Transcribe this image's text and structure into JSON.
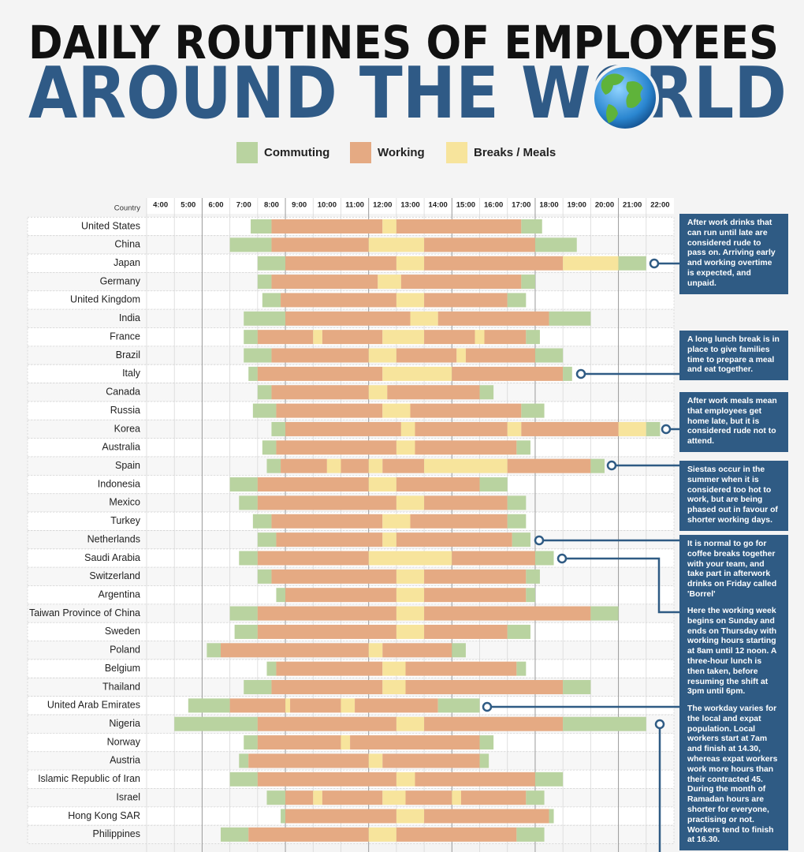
{
  "chart_data": {
    "type": "gantt",
    "title": "DAILY ROUTINES OF EMPLOYEES",
    "subtitle": "AROUND THE WORLD",
    "legend": [
      {
        "name": "Commuting",
        "color": "#b9d3a0"
      },
      {
        "name": "Working",
        "color": "#e5aa83"
      },
      {
        "name": "Breaks / Meals",
        "color": "#f7e49c"
      }
    ],
    "row_header": "Country",
    "xlim": [
      4,
      23
    ],
    "xticks": [
      {
        "value": 4,
        "label": "4:00"
      },
      {
        "value": 5,
        "label": "5:00"
      },
      {
        "value": 6,
        "label": "6:00"
      },
      {
        "value": 7,
        "label": "7:00"
      },
      {
        "value": 8,
        "label": "8:00"
      },
      {
        "value": 9,
        "label": "9:00"
      },
      {
        "value": 10,
        "label": "10:00"
      },
      {
        "value": 11,
        "label": "11:00"
      },
      {
        "value": 12,
        "label": "12:00"
      },
      {
        "value": 13,
        "label": "13:00"
      },
      {
        "value": 14,
        "label": "14:00"
      },
      {
        "value": 15,
        "label": "15:00"
      },
      {
        "value": 16,
        "label": "16:00"
      },
      {
        "value": 17,
        "label": "17:00"
      },
      {
        "value": 18,
        "label": "18:00"
      },
      {
        "value": 19,
        "label": "19:00"
      },
      {
        "value": 20,
        "label": "20:00"
      },
      {
        "value": 21,
        "label": "21:00"
      },
      {
        "value": 22,
        "label": "22:00"
      }
    ],
    "grid": true,
    "rows": [
      {
        "country": "United States",
        "segments": [
          [
            7.75,
            8.5,
            0
          ],
          [
            8.5,
            12.5,
            1
          ],
          [
            12.5,
            13,
            2
          ],
          [
            13,
            17.5,
            1
          ],
          [
            17.5,
            18.25,
            0
          ]
        ]
      },
      {
        "country": "China",
        "segments": [
          [
            7,
            8.5,
            0
          ],
          [
            8.5,
            12,
            1
          ],
          [
            12,
            14,
            2
          ],
          [
            14,
            18,
            1
          ],
          [
            18,
            19.5,
            0
          ]
        ]
      },
      {
        "country": "Japan",
        "segments": [
          [
            8,
            9,
            0
          ],
          [
            9,
            13,
            1
          ],
          [
            13,
            14,
            2
          ],
          [
            14,
            19,
            1
          ],
          [
            19,
            21,
            2
          ],
          [
            21,
            22,
            0
          ]
        ]
      },
      {
        "country": "Germany",
        "segments": [
          [
            8,
            8.5,
            0
          ],
          [
            8.5,
            12.33,
            1
          ],
          [
            12.33,
            13.17,
            2
          ],
          [
            13.17,
            17.5,
            1
          ],
          [
            17.5,
            18,
            0
          ]
        ]
      },
      {
        "country": "United Kingdom",
        "segments": [
          [
            8.17,
            8.83,
            0
          ],
          [
            8.83,
            13,
            1
          ],
          [
            13,
            14,
            2
          ],
          [
            14,
            17,
            1
          ],
          [
            17,
            17.67,
            0
          ]
        ]
      },
      {
        "country": "India",
        "segments": [
          [
            7.5,
            9,
            0
          ],
          [
            9,
            13.5,
            1
          ],
          [
            13.5,
            14.5,
            2
          ],
          [
            14.5,
            18.5,
            1
          ],
          [
            18.5,
            20,
            0
          ]
        ]
      },
      {
        "country": "France",
        "segments": [
          [
            7.5,
            8,
            0
          ],
          [
            8,
            10,
            1
          ],
          [
            10,
            10.33,
            2
          ],
          [
            10.33,
            12.5,
            1
          ],
          [
            12.5,
            14,
            2
          ],
          [
            14,
            15.83,
            1
          ],
          [
            15.83,
            16.17,
            2
          ],
          [
            16.17,
            17.67,
            1
          ],
          [
            17.67,
            18.17,
            0
          ]
        ]
      },
      {
        "country": "Brazil",
        "segments": [
          [
            7.5,
            8.5,
            0
          ],
          [
            8.5,
            12,
            1
          ],
          [
            12,
            13,
            2
          ],
          [
            13,
            15.17,
            1
          ],
          [
            15.17,
            15.5,
            2
          ],
          [
            15.5,
            18,
            1
          ],
          [
            18,
            19,
            0
          ]
        ]
      },
      {
        "country": "Italy",
        "segments": [
          [
            7.67,
            8,
            0
          ],
          [
            8,
            12.5,
            1
          ],
          [
            12.5,
            15,
            2
          ],
          [
            15,
            19,
            1
          ],
          [
            19,
            19.33,
            0
          ]
        ]
      },
      {
        "country": "Canada",
        "segments": [
          [
            8,
            8.5,
            0
          ],
          [
            8.5,
            12,
            1
          ],
          [
            12,
            12.67,
            2
          ],
          [
            12.67,
            16,
            1
          ],
          [
            16,
            16.5,
            0
          ]
        ]
      },
      {
        "country": "Russia",
        "segments": [
          [
            7.83,
            8.67,
            0
          ],
          [
            8.67,
            12.5,
            1
          ],
          [
            12.5,
            13.5,
            2
          ],
          [
            13.5,
            17.5,
            1
          ],
          [
            17.5,
            18.33,
            0
          ]
        ]
      },
      {
        "country": "Korea",
        "segments": [
          [
            8.5,
            9,
            0
          ],
          [
            9,
            13.17,
            1
          ],
          [
            13.17,
            13.67,
            2
          ],
          [
            13.67,
            17,
            1
          ],
          [
            17,
            17.5,
            2
          ],
          [
            17.5,
            21,
            1
          ],
          [
            21,
            22,
            2
          ],
          [
            22,
            22.5,
            0
          ]
        ]
      },
      {
        "country": "Australia",
        "segments": [
          [
            8.17,
            8.67,
            0
          ],
          [
            8.67,
            13,
            1
          ],
          [
            13,
            13.67,
            2
          ],
          [
            13.67,
            17.33,
            1
          ],
          [
            17.33,
            17.83,
            0
          ]
        ]
      },
      {
        "country": "Spain",
        "segments": [
          [
            8.33,
            8.83,
            0
          ],
          [
            8.83,
            10.5,
            1
          ],
          [
            10.5,
            11,
            2
          ],
          [
            11,
            12,
            1
          ],
          [
            12,
            12.5,
            2
          ],
          [
            12.5,
            14,
            1
          ],
          [
            14,
            17,
            2
          ],
          [
            17,
            20,
            1
          ],
          [
            20,
            20.5,
            0
          ]
        ]
      },
      {
        "country": "Indonesia",
        "segments": [
          [
            7,
            8,
            0
          ],
          [
            8,
            12,
            1
          ],
          [
            12,
            13,
            2
          ],
          [
            13,
            16,
            1
          ],
          [
            16,
            17,
            0
          ]
        ]
      },
      {
        "country": "Mexico",
        "segments": [
          [
            7.33,
            8,
            0
          ],
          [
            8,
            13,
            1
          ],
          [
            13,
            14,
            2
          ],
          [
            14,
            17,
            1
          ],
          [
            17,
            17.67,
            0
          ]
        ]
      },
      {
        "country": "Turkey",
        "segments": [
          [
            7.83,
            8.5,
            0
          ],
          [
            8.5,
            12.5,
            1
          ],
          [
            12.5,
            13.5,
            2
          ],
          [
            13.5,
            17,
            1
          ],
          [
            17,
            17.67,
            0
          ]
        ]
      },
      {
        "country": "Netherlands",
        "segments": [
          [
            8,
            8.67,
            0
          ],
          [
            8.67,
            12.5,
            1
          ],
          [
            12.5,
            13,
            2
          ],
          [
            13,
            17.17,
            1
          ],
          [
            17.17,
            17.83,
            0
          ]
        ]
      },
      {
        "country": "Saudi Arabia",
        "segments": [
          [
            7.33,
            8,
            0
          ],
          [
            8,
            12,
            1
          ],
          [
            12,
            15,
            2
          ],
          [
            15,
            18,
            1
          ],
          [
            18,
            18.67,
            0
          ]
        ]
      },
      {
        "country": "Switzerland",
        "segments": [
          [
            8,
            8.5,
            0
          ],
          [
            8.5,
            13,
            1
          ],
          [
            13,
            14,
            2
          ],
          [
            14,
            17.67,
            1
          ],
          [
            17.67,
            18.17,
            0
          ]
        ]
      },
      {
        "country": "Argentina",
        "segments": [
          [
            8.67,
            9,
            0
          ],
          [
            9,
            13,
            1
          ],
          [
            13,
            14,
            2
          ],
          [
            14,
            17.67,
            1
          ],
          [
            17.67,
            18,
            0
          ]
        ]
      },
      {
        "country": "Taiwan Province of China",
        "segments": [
          [
            7,
            8,
            0
          ],
          [
            8,
            13,
            1
          ],
          [
            13,
            14,
            2
          ],
          [
            14,
            20,
            1
          ],
          [
            20,
            21,
            0
          ]
        ]
      },
      {
        "country": "Sweden",
        "segments": [
          [
            7.17,
            8,
            0
          ],
          [
            8,
            13,
            1
          ],
          [
            13,
            14,
            2
          ],
          [
            14,
            17,
            1
          ],
          [
            17,
            17.83,
            0
          ]
        ]
      },
      {
        "country": "Poland",
        "segments": [
          [
            6.17,
            6.67,
            0
          ],
          [
            6.67,
            12,
            1
          ],
          [
            12,
            12.5,
            2
          ],
          [
            12.5,
            15,
            1
          ],
          [
            15,
            15.5,
            0
          ]
        ]
      },
      {
        "country": "Belgium",
        "segments": [
          [
            8.33,
            8.67,
            0
          ],
          [
            8.67,
            12.5,
            1
          ],
          [
            12.5,
            13.33,
            2
          ],
          [
            13.33,
            17.33,
            1
          ],
          [
            17.33,
            17.67,
            0
          ]
        ]
      },
      {
        "country": "Thailand",
        "segments": [
          [
            7.5,
            8.5,
            0
          ],
          [
            8.5,
            12.5,
            1
          ],
          [
            12.5,
            13.33,
            2
          ],
          [
            13.33,
            19,
            1
          ],
          [
            19,
            20,
            0
          ]
        ]
      },
      {
        "country": "United Arab Emirates",
        "segments": [
          [
            5.5,
            7,
            0
          ],
          [
            7,
            9,
            1
          ],
          [
            9,
            9.17,
            2
          ],
          [
            9.17,
            11,
            1
          ],
          [
            11,
            11.5,
            2
          ],
          [
            11.5,
            14.5,
            1
          ],
          [
            14.5,
            16,
            0
          ]
        ]
      },
      {
        "country": "Nigeria",
        "segments": [
          [
            5,
            8,
            0
          ],
          [
            8,
            13,
            1
          ],
          [
            13,
            14,
            2
          ],
          [
            14,
            19,
            1
          ],
          [
            19,
            22,
            0
          ]
        ]
      },
      {
        "country": "Norway",
        "segments": [
          [
            7.5,
            8,
            0
          ],
          [
            8,
            11,
            1
          ],
          [
            11,
            11.33,
            2
          ],
          [
            11.33,
            16,
            1
          ],
          [
            16,
            16.5,
            0
          ]
        ]
      },
      {
        "country": "Austria",
        "segments": [
          [
            7.33,
            7.67,
            0
          ],
          [
            7.67,
            12,
            1
          ],
          [
            12,
            12.5,
            2
          ],
          [
            12.5,
            16,
            1
          ],
          [
            16,
            16.33,
            0
          ]
        ]
      },
      {
        "country": "Islamic Republic of Iran",
        "segments": [
          [
            7,
            8,
            0
          ],
          [
            8,
            13,
            1
          ],
          [
            13,
            13.67,
            2
          ],
          [
            13.67,
            18,
            1
          ],
          [
            18,
            19,
            0
          ]
        ]
      },
      {
        "country": "Israel",
        "segments": [
          [
            8.33,
            9,
            0
          ],
          [
            9,
            10,
            1
          ],
          [
            10,
            10.33,
            2
          ],
          [
            10.33,
            12.5,
            1
          ],
          [
            12.5,
            13.33,
            2
          ],
          [
            13.33,
            15,
            1
          ],
          [
            15,
            15.33,
            2
          ],
          [
            15.33,
            17.67,
            1
          ],
          [
            17.67,
            18.33,
            0
          ]
        ]
      },
      {
        "country": "Hong Kong SAR",
        "segments": [
          [
            8.83,
            9,
            0
          ],
          [
            9,
            13,
            1
          ],
          [
            13,
            14,
            2
          ],
          [
            14,
            18.5,
            1
          ],
          [
            18.5,
            18.67,
            0
          ]
        ]
      },
      {
        "country": "Philippines",
        "segments": [
          [
            6.67,
            7.67,
            0
          ],
          [
            7.67,
            12,
            1
          ],
          [
            12,
            13,
            2
          ],
          [
            13,
            17.33,
            1
          ],
          [
            17.33,
            18.33,
            0
          ]
        ]
      }
    ],
    "annotations": [
      "After work drinks that can run until late are considered rude to pass on. Arriving early and working overtime is expected, and unpaid.",
      "A long lunch break is in place to give families time to prepare a meal and eat together.",
      "After work meals mean that employees get home late, but it is considered rude not to attend.",
      "Siestas occur in the summer when it is considered too hot to work, but are being phased out in favour of shorter working days.",
      "It is normal to go for coffee breaks together with your team, and take part in afterwork drinks on Friday called 'Borrel'",
      "Here the working week begins on  Sunday and ends on Thursday with working hours starting at 8am until 12 noon. A three-hour lunch is then taken, before resuming the shift at 3pm until 6pm.",
      "The workday varies for the local and expat population. Local workers start at  7am and finish at 14.30, whereas expat workers work more hours than their contracted 45. During the month of Ramadan hours are shorter for everyone, practising or not. Workers tend to finish at 16.30."
    ]
  }
}
